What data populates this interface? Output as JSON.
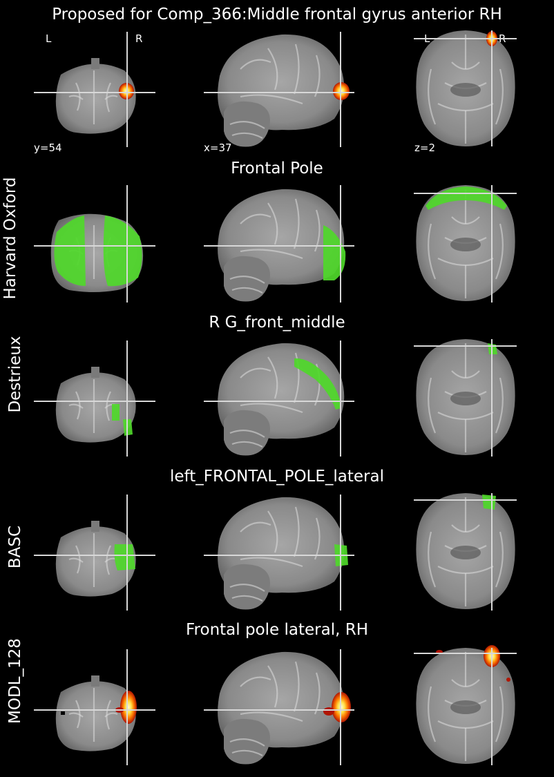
{
  "figure": {
    "title": "Proposed for Comp_366:Middle frontal gyrus anterior RH",
    "orientation": {
      "left": "L",
      "right": "R"
    },
    "cut_coords": {
      "y": "y=54",
      "x": "x=37",
      "z": "z=2"
    }
  },
  "rows": [
    {
      "label": "",
      "region": "Proposed for Comp_366:Middle frontal gyrus anterior RH",
      "overlay": "hot"
    },
    {
      "label": "Harvard Oxford",
      "region": "Frontal Pole",
      "overlay": "green"
    },
    {
      "label": "Destrieux",
      "region": "R G_front_middle",
      "overlay": "green"
    },
    {
      "label": "BASC",
      "region": "left_FRONTAL_POLE_lateral",
      "overlay": "green"
    },
    {
      "label": "MODL_128",
      "region": "Frontal pole lateral, RH",
      "overlay": "hot"
    }
  ],
  "colors": {
    "background": "#000000",
    "crosshair": "#d8d8d8",
    "atlas_green": "#4fd82a",
    "hot_outer": "#b01500",
    "hot_mid": "#ff7a00",
    "hot_core": "#fffbd0",
    "brain_light": "#a6a6a6",
    "brain_dark": "#5f5f5f"
  }
}
